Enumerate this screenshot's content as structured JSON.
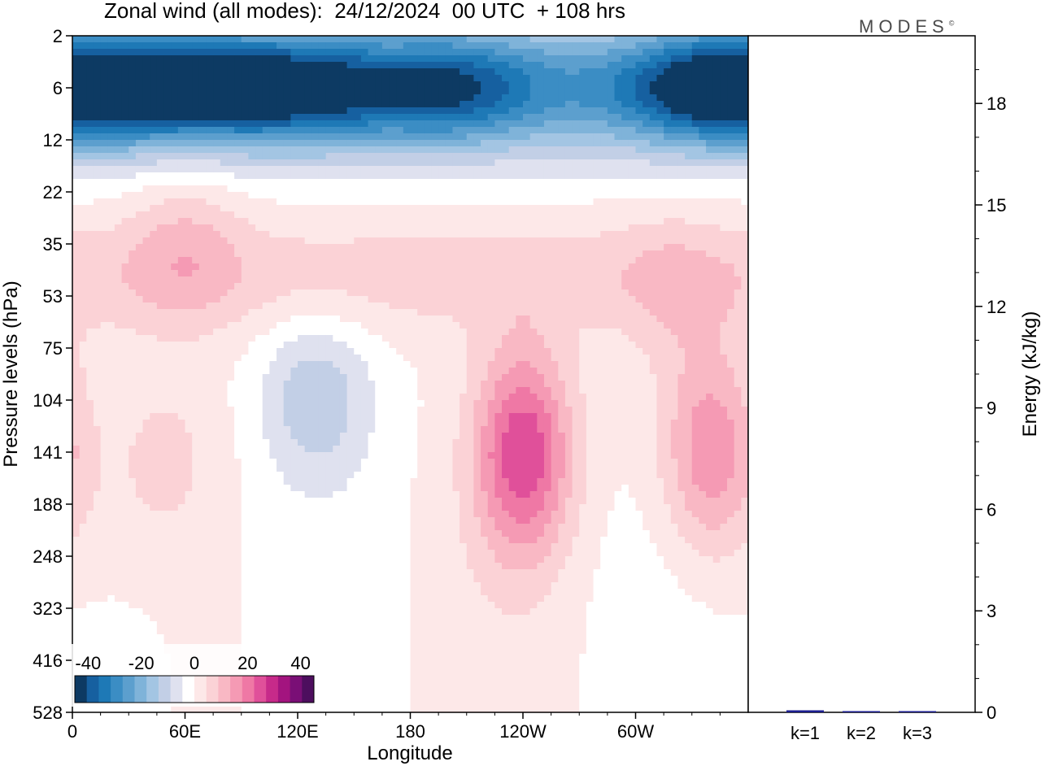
{
  "title": "Zonal wind (all modes):  24/12/2024  00 UTC  + 108 hrs",
  "logo": "MODES",
  "logo_mark": "©",
  "colors": {
    "neg": [
      "#0d3a63",
      "#1660a0",
      "#1e79b6",
      "#3b8dc4",
      "#5c9fce",
      "#7fb3d9",
      "#a3c5e3",
      "#c2cfe6",
      "#dfe1ef"
    ],
    "zero": "#ffffff",
    "pos": [
      "#fde8e8",
      "#fbd2d6",
      "#f9b8c4",
      "#f59ab4",
      "#ef78a5",
      "#e0509a",
      "#c72a8a",
      "#a3147f",
      "#7a0f76",
      "#4d0e5e"
    ]
  },
  "chart_data": [
    {
      "type": "heatmap",
      "title": "Zonal wind (all modes):  24/12/2024  00 UTC  + 108 hrs",
      "xlabel": "Longitude",
      "ylabel": "Pressure levels (hPa)",
      "x_ticks": [
        "0",
        "60E",
        "120E",
        "180",
        "120W",
        "60W"
      ],
      "y_ticks": [
        "2",
        "6",
        "12",
        "22",
        "35",
        "53",
        "75",
        "104",
        "141",
        "188",
        "248",
        "323",
        "416",
        "528"
      ],
      "colorbar": {
        "ticks": [
          "-40",
          "-20",
          "0",
          "20",
          "40"
        ],
        "range": [
          -45,
          45
        ],
        "levels": 19
      },
      "features": [
        {
          "lon": 30,
          "level": "6",
          "value": -33
        },
        {
          "lon": 80,
          "level": "6",
          "value": -30
        },
        {
          "lon": 130,
          "level": "6",
          "value": -30
        },
        {
          "lon": 200,
          "level": "6",
          "value": -28
        },
        {
          "lon": 340,
          "level": "6",
          "value": -40
        },
        {
          "lon": 60,
          "level": "35",
          "value": 12
        },
        {
          "lon": 320,
          "level": "53",
          "value": 8
        },
        {
          "lon": 130,
          "level": "104",
          "value": -20
        },
        {
          "lon": 240,
          "level": "141",
          "value": 42
        },
        {
          "lon": 340,
          "level": "141",
          "value": 28
        },
        {
          "lon": 50,
          "level": "141",
          "value": 8
        },
        {
          "lon": 30,
          "level": "416",
          "value": -6
        }
      ]
    },
    {
      "type": "bar",
      "ylabel": "Energy (kJ/kg)",
      "categories": [
        "k=1",
        "k=2",
        "k=3"
      ],
      "values": [
        0.06,
        0.02,
        0.01
      ],
      "ylim": [
        0,
        20
      ],
      "y_ticks": [
        "0",
        "3",
        "6",
        "9",
        "12",
        "15",
        "18"
      ]
    }
  ]
}
